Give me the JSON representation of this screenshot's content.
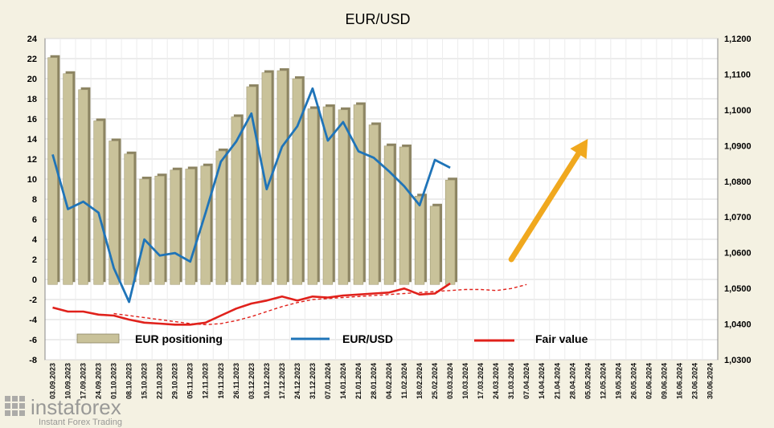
{
  "chart_data": {
    "type": "bar",
    "title": "EUR/USD",
    "colors": {
      "bar": "#c9c29a",
      "bar_dark": "#8c8462",
      "eurusd": "#1f74b8",
      "fair_value": "#e0211b",
      "arrow": "#f0a81e",
      "background": "#f4f1e2",
      "plot_background": "#ffffff"
    },
    "x_labels": [
      "03.09.2023",
      "10.09.2023",
      "17.09.2023",
      "24.09.2023",
      "01.10.2023",
      "08.10.2023",
      "15.10.2023",
      "22.10.2023",
      "29.10.2023",
      "05.11.2023",
      "12.11.2023",
      "19.11.2023",
      "26.11.2023",
      "03.12.2023",
      "10.12.2023",
      "17.12.2023",
      "24.12.2023",
      "31.12.2023",
      "07.01.2024",
      "14.01.2024",
      "21.01.2024",
      "28.01.2024",
      "04.02.2024",
      "11.02.2024",
      "18.02.2024",
      "25.02.2024",
      "03.03.2024",
      "10.03.2024",
      "17.03.2024",
      "24.03.2024",
      "31.03.2024",
      "07.04.2024",
      "14.04.2024",
      "21.04.2024",
      "28.04.2024",
      "05.05.2024",
      "12.05.2024",
      "19.05.2024",
      "26.05.2024",
      "02.06.2024",
      "09.06.2024",
      "16.06.2024",
      "23.06.2024",
      "30.06.2024"
    ],
    "y_left": {
      "min": -8,
      "max": 24,
      "ticks": [
        24,
        22,
        20,
        18,
        16,
        14,
        12,
        10,
        8,
        6,
        4,
        2,
        0,
        -2,
        -4,
        -6,
        -8
      ]
    },
    "y_right": {
      "min": 1.03,
      "max": 1.12,
      "ticks": [
        "1,1200",
        "1,1100",
        "1,1000",
        "1,0900",
        "1,0800",
        "1,0700",
        "1,0600",
        "1,0500",
        "1,0400",
        "1,0300"
      ]
    },
    "series": [
      {
        "name": "EUR positioning",
        "kind": "bar",
        "axis": "left",
        "values": [
          22.1,
          20.5,
          18.9,
          15.8,
          13.8,
          12.5,
          10.0,
          10.3,
          10.9,
          11.0,
          11.3,
          12.8,
          16.2,
          19.2,
          20.6,
          20.8,
          20.0,
          17.0,
          17.2,
          16.9,
          17.4,
          15.4,
          13.3,
          13.2,
          8.3,
          7.3,
          9.9
        ]
      },
      {
        "name": "EUR/USD",
        "kind": "line",
        "axis": "right",
        "values": [
          1.0875,
          1.0722,
          1.0743,
          1.0712,
          1.0557,
          1.0462,
          1.0637,
          1.0592,
          1.0599,
          1.0575,
          1.0711,
          1.0855,
          1.0911,
          1.099,
          1.0778,
          1.0897,
          1.0954,
          1.106,
          1.0914,
          1.0966,
          1.0884,
          1.0866,
          1.0828,
          1.0786,
          1.0733,
          1.086,
          1.0838
        ]
      },
      {
        "name": "Fair value",
        "kind": "line",
        "axis": "left",
        "values": [
          -2.8,
          -3.2,
          -3.2,
          -3.5,
          -3.6,
          -4.0,
          -4.3,
          -4.4,
          -4.5,
          -4.5,
          -4.3,
          -3.6,
          -2.9,
          -2.4,
          -2.1,
          -1.7,
          -2.1,
          -1.7,
          -1.8,
          -1.6,
          -1.5,
          -1.4,
          -1.3,
          -0.9,
          -1.5,
          -1.4,
          -0.4
        ]
      },
      {
        "kind": "dashed-line",
        "axis": "left",
        "values": [
          null,
          null,
          null,
          null,
          -3.4,
          -3.6,
          -3.8,
          -4.0,
          -4.2,
          -4.4,
          -4.5,
          -4.4,
          -4.1,
          -3.7,
          -3.2,
          -2.7,
          -2.3,
          -2.0,
          -1.9,
          -1.8,
          -1.7,
          -1.6,
          -1.5,
          -1.4,
          -1.3,
          -1.2,
          -1.1,
          -1.0,
          -1.0,
          -1.1,
          -0.9,
          -0.5
        ]
      }
    ],
    "arrow": {
      "from_index": 30,
      "to_index": 35,
      "from_value": 2.0,
      "to_value": 14.0
    },
    "legend": [
      "EUR positioning",
      "EUR/USD",
      "Fair value"
    ],
    "legend_position": "bottom",
    "grid": true
  },
  "watermark": {
    "brand": "instaforex",
    "tagline": "Instant Forex Trading"
  }
}
